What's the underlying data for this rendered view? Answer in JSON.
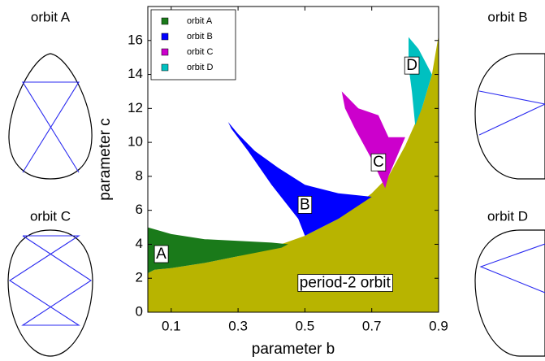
{
  "chart_data": {
    "type": "region",
    "xlabel": "parameter b",
    "ylabel": "parameter c",
    "xlim": [
      0.03,
      0.9
    ],
    "ylim": [
      0,
      18
    ],
    "xticks": [
      0.1,
      0.3,
      0.5,
      0.7,
      0.9
    ],
    "yticks": [
      0,
      2,
      4,
      6,
      8,
      10,
      12,
      14,
      16
    ],
    "legend": "upper left",
    "base_region": {
      "label": "period-2 orbit",
      "color": "#b8b400",
      "x": [
        0.03,
        0.03,
        0.05,
        0.1,
        0.2,
        0.3,
        0.4,
        0.5,
        0.6,
        0.7,
        0.75,
        0.8,
        0.85,
        0.88,
        0.9,
        0.9
      ],
      "y": [
        0,
        2.3,
        2.5,
        2.6,
        2.9,
        3.3,
        3.8,
        4.5,
        5.5,
        7.0,
        8.0,
        9.8,
        12.0,
        14.0,
        16.3,
        0
      ]
    },
    "series": [
      {
        "name": "orbit A",
        "label": "A",
        "color": "#1a7a1a",
        "x": [
          0.03,
          0.1,
          0.2,
          0.3,
          0.4,
          0.45,
          0.43,
          0.3,
          0.2,
          0.1,
          0.05,
          0.03
        ],
        "y": [
          5,
          4.6,
          4.3,
          4.2,
          4.1,
          4.0,
          3.8,
          3.3,
          2.9,
          2.6,
          2.5,
          2.3
        ]
      },
      {
        "name": "orbit B",
        "label": "B",
        "color": "#0000ff",
        "x": [
          0.27,
          0.3,
          0.35,
          0.42,
          0.5,
          0.6,
          0.7,
          0.6,
          0.5,
          0.48,
          0.4,
          0.33,
          0.28
        ],
        "y": [
          11.2,
          10.5,
          9.5,
          8.5,
          7.5,
          7.0,
          6.8,
          5.5,
          4.5,
          5.5,
          7.5,
          9.5,
          10.8
        ]
      },
      {
        "name": "orbit C",
        "label": "C",
        "color": "#cc00cc",
        "x": [
          0.61,
          0.66,
          0.72,
          0.75,
          0.8,
          0.75,
          0.74,
          0.7,
          0.65,
          0.62
        ],
        "y": [
          13,
          12,
          11.6,
          10.3,
          10.3,
          8,
          7.3,
          9,
          10.8,
          12
        ]
      },
      {
        "name": "orbit D",
        "label": "D",
        "color": "#00c0c0",
        "x": [
          0.81,
          0.84,
          0.88,
          0.85,
          0.83,
          0.82,
          0.81
        ],
        "y": [
          16.2,
          15.5,
          14,
          12,
          11,
          13,
          14.5
        ]
      }
    ]
  },
  "diagrams": [
    {
      "title": "orbit A"
    },
    {
      "title": "orbit C"
    },
    {
      "title": "orbit B"
    },
    {
      "title": "orbit D"
    }
  ]
}
